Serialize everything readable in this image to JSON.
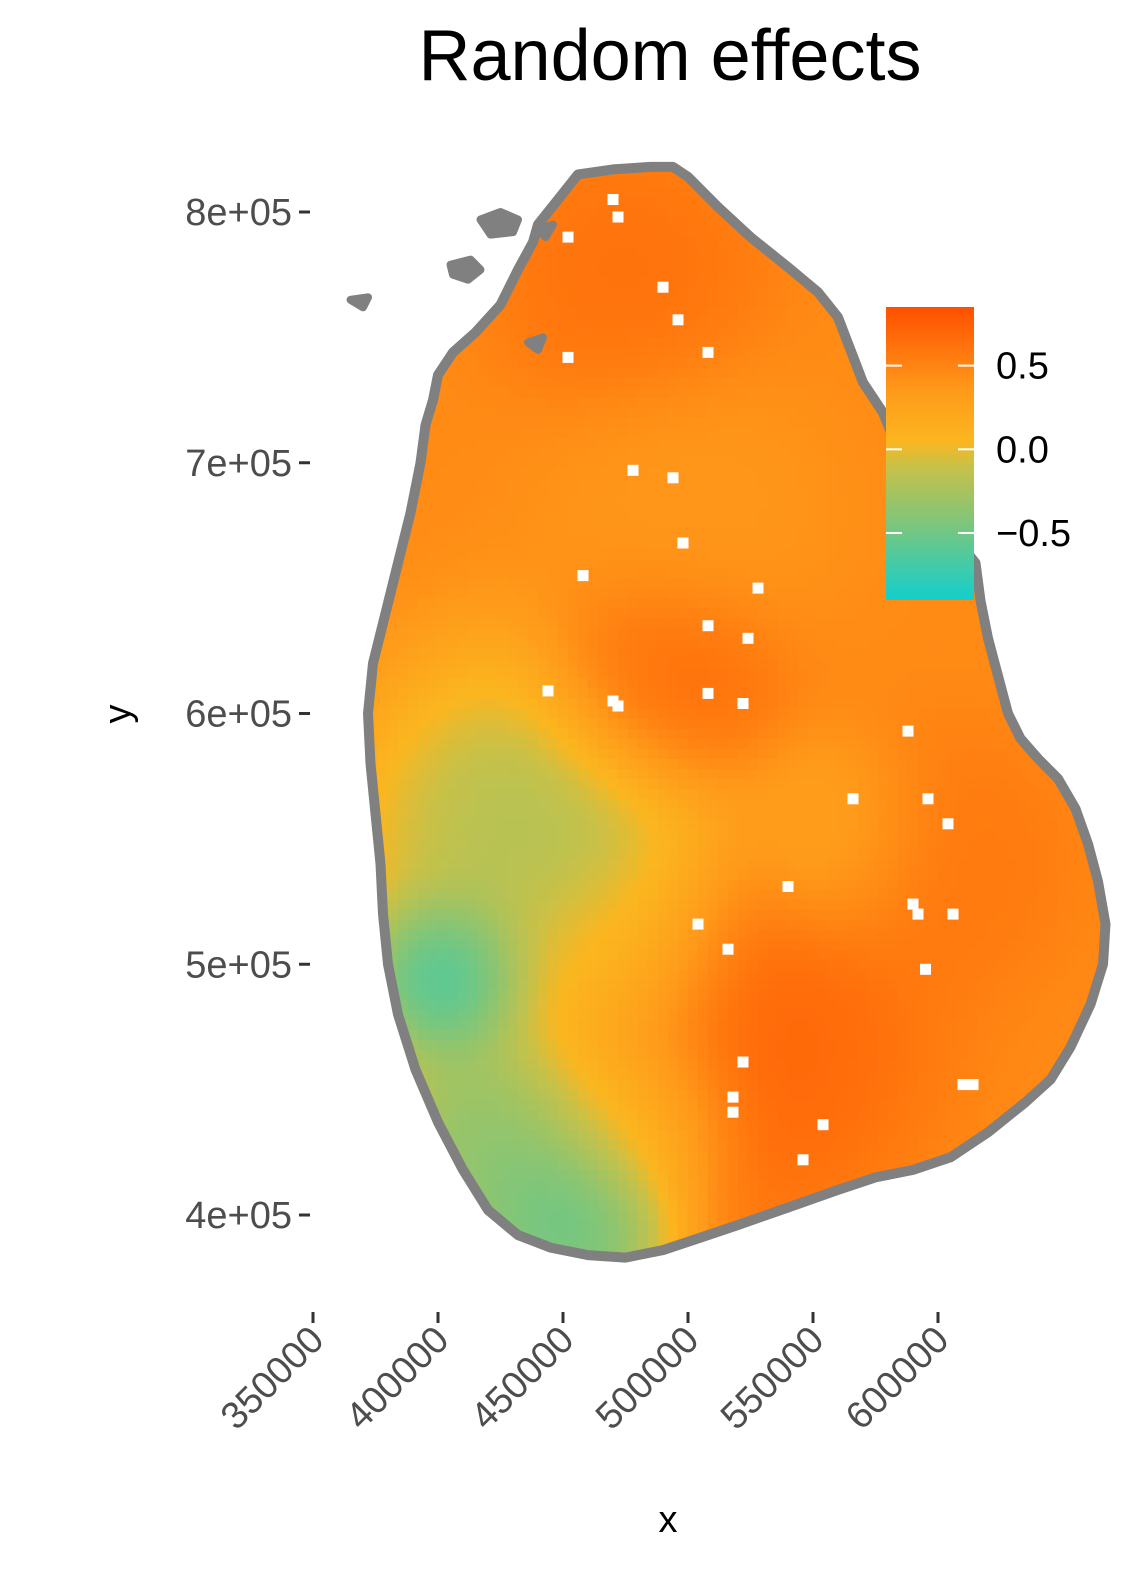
{
  "chart_data": {
    "type": "heatmap",
    "title": "Random effects",
    "xlabel": "x",
    "ylabel": "y",
    "xlim": [
      325000,
      625000
    ],
    "ylim": [
      370000,
      830000
    ],
    "x_ticks": [
      {
        "value": 350000,
        "label": "350000"
      },
      {
        "value": 400000,
        "label": "400000"
      },
      {
        "value": 450000,
        "label": "450000"
      },
      {
        "value": 500000,
        "label": "500000"
      },
      {
        "value": 550000,
        "label": "550000"
      },
      {
        "value": 600000,
        "label": "600000"
      }
    ],
    "y_ticks": [
      {
        "value": 400000,
        "label": "4e+05"
      },
      {
        "value": 500000,
        "label": "5e+05"
      },
      {
        "value": 600000,
        "label": "6e+05"
      },
      {
        "value": 700000,
        "label": "7e+05"
      },
      {
        "value": 800000,
        "label": "8e+05"
      }
    ],
    "grid": false,
    "legend": {
      "placement": "right",
      "range": [
        -0.9,
        0.85
      ],
      "ticks": [
        {
          "value": 0.5,
          "label": "0.5"
        },
        {
          "value": 0.0,
          "label": "0.0"
        },
        {
          "value": -0.5,
          "label": "−0.5"
        }
      ],
      "colors": [
        {
          "value": -0.9,
          "color": "#12cfcc"
        },
        {
          "value": -0.45,
          "color": "#7cc67c"
        },
        {
          "value": -0.1,
          "color": "#c8c148"
        },
        {
          "value": 0.05,
          "color": "#fbb61f"
        },
        {
          "value": 0.35,
          "color": "#ff9a1a"
        },
        {
          "value": 0.85,
          "color": "#ff4f00"
        }
      ]
    },
    "coastline_color": "#808080",
    "outline": [
      [
        448000,
        805000
      ],
      [
        456000,
        815000
      ],
      [
        470000,
        817000
      ],
      [
        485000,
        818000
      ],
      [
        494000,
        818000
      ],
      [
        500000,
        814000
      ],
      [
        512000,
        802000
      ],
      [
        525000,
        790000
      ],
      [
        540000,
        778000
      ],
      [
        552000,
        768000
      ],
      [
        560000,
        758000
      ],
      [
        565000,
        745000
      ],
      [
        570000,
        732000
      ],
      [
        578000,
        720000
      ],
      [
        584000,
        705000
      ],
      [
        590000,
        690000
      ],
      [
        595000,
        677000
      ],
      [
        604000,
        670000
      ],
      [
        611000,
        665000
      ],
      [
        615000,
        660000
      ],
      [
        617000,
        645000
      ],
      [
        620000,
        630000
      ],
      [
        624000,
        615000
      ],
      [
        628000,
        600000
      ],
      [
        633000,
        590000
      ],
      [
        640000,
        582000
      ],
      [
        648000,
        574000
      ],
      [
        655000,
        562000
      ],
      [
        660000,
        548000
      ],
      [
        664000,
        533000
      ],
      [
        667000,
        516000
      ],
      [
        666000,
        500000
      ],
      [
        661000,
        484000
      ],
      [
        653000,
        467000
      ],
      [
        645000,
        454000
      ],
      [
        635000,
        445000
      ],
      [
        620000,
        433000
      ],
      [
        605000,
        423000
      ],
      [
        590000,
        418000
      ],
      [
        575000,
        415000
      ],
      [
        560000,
        410000
      ],
      [
        540000,
        403000
      ],
      [
        520000,
        396000
      ],
      [
        505000,
        391000
      ],
      [
        490000,
        386000
      ],
      [
        475000,
        383000
      ],
      [
        460000,
        384000
      ],
      [
        445000,
        387000
      ],
      [
        432000,
        392000
      ],
      [
        420000,
        402000
      ],
      [
        410000,
        418000
      ],
      [
        400000,
        437000
      ],
      [
        391000,
        458000
      ],
      [
        384000,
        480000
      ],
      [
        380000,
        500000
      ],
      [
        378000,
        520000
      ],
      [
        377000,
        540000
      ],
      [
        375000,
        560000
      ],
      [
        373000,
        580000
      ],
      [
        372000,
        600000
      ],
      [
        374000,
        620000
      ],
      [
        379000,
        640000
      ],
      [
        384000,
        660000
      ],
      [
        389000,
        680000
      ],
      [
        393000,
        700000
      ],
      [
        395000,
        715000
      ],
      [
        398000,
        725000
      ],
      [
        400000,
        735000
      ],
      [
        406000,
        744000
      ],
      [
        415000,
        752000
      ],
      [
        425000,
        763000
      ],
      [
        432000,
        777000
      ],
      [
        438000,
        788000
      ],
      [
        440000,
        795000
      ]
    ],
    "islands": [
      [
        [
          417000,
          797000
        ],
        [
          425000,
          800000
        ],
        [
          432000,
          797000
        ],
        [
          430000,
          792000
        ],
        [
          421000,
          791000
        ]
      ],
      [
        [
          405000,
          779000
        ],
        [
          413000,
          781000
        ],
        [
          417000,
          777000
        ],
        [
          412000,
          773000
        ],
        [
          406000,
          775000
        ]
      ],
      [
        [
          365000,
          765000
        ],
        [
          372000,
          766000
        ],
        [
          370000,
          762000
        ]
      ],
      [
        [
          440000,
          793000
        ],
        [
          446000,
          795000
        ],
        [
          443000,
          790000
        ]
      ],
      [
        [
          436000,
          748000
        ],
        [
          442000,
          750000
        ],
        [
          440000,
          745000
        ]
      ]
    ],
    "gaps": [
      [
        470000,
        805000
      ],
      [
        472000,
        798000
      ],
      [
        452000,
        790000
      ],
      [
        490000,
        770000
      ],
      [
        496000,
        757000
      ],
      [
        508000,
        744000
      ],
      [
        452000,
        742000
      ],
      [
        478000,
        697000
      ],
      [
        494000,
        694000
      ],
      [
        498000,
        668000
      ],
      [
        458000,
        655000
      ],
      [
        528000,
        650000
      ],
      [
        508000,
        635000
      ],
      [
        524000,
        630000
      ],
      [
        444000,
        609000
      ],
      [
        470000,
        605000
      ],
      [
        472000,
        603000
      ],
      [
        508000,
        608000
      ],
      [
        522000,
        604000
      ],
      [
        588000,
        593000
      ],
      [
        566000,
        566000
      ],
      [
        596000,
        566000
      ],
      [
        604000,
        556000
      ],
      [
        540000,
        531000
      ],
      [
        590000,
        524000
      ],
      [
        592000,
        520000
      ],
      [
        606000,
        520000
      ],
      [
        516000,
        506000
      ],
      [
        595000,
        498000
      ],
      [
        522000,
        461000
      ],
      [
        518000,
        447000
      ],
      [
        518000,
        441000
      ],
      [
        610000,
        452000
      ],
      [
        614000,
        452000
      ],
      [
        554000,
        436000
      ],
      [
        546000,
        422000
      ],
      [
        504000,
        516000
      ]
    ],
    "field": [
      {
        "x": 490000,
        "y": 610000,
        "value": 0.75,
        "radius": 35000
      },
      {
        "x": 475000,
        "y": 775000,
        "value": 0.65,
        "radius": 40000
      },
      {
        "x": 520000,
        "y": 470000,
        "value": 0.75,
        "radius": 55000
      },
      {
        "x": 600000,
        "y": 540000,
        "value": 0.6,
        "radius": 40000
      },
      {
        "x": 500000,
        "y": 680000,
        "value": 0.35,
        "radius": 45000
      },
      {
        "x": 560000,
        "y": 550000,
        "value": 0.2,
        "radius": 30000
      },
      {
        "x": 440000,
        "y": 550000,
        "value": -0.35,
        "radius": 55000
      },
      {
        "x": 405000,
        "y": 495000,
        "value": -0.9,
        "radius": 25000
      },
      {
        "x": 425000,
        "y": 430000,
        "value": -0.55,
        "radius": 40000
      },
      {
        "x": 455000,
        "y": 400000,
        "value": -0.75,
        "radius": 30000
      },
      {
        "x": 470000,
        "y": 500000,
        "value": 0.0,
        "radius": 35000
      },
      {
        "x": 480000,
        "y": 440000,
        "value": -0.05,
        "radius": 30000
      }
    ]
  }
}
